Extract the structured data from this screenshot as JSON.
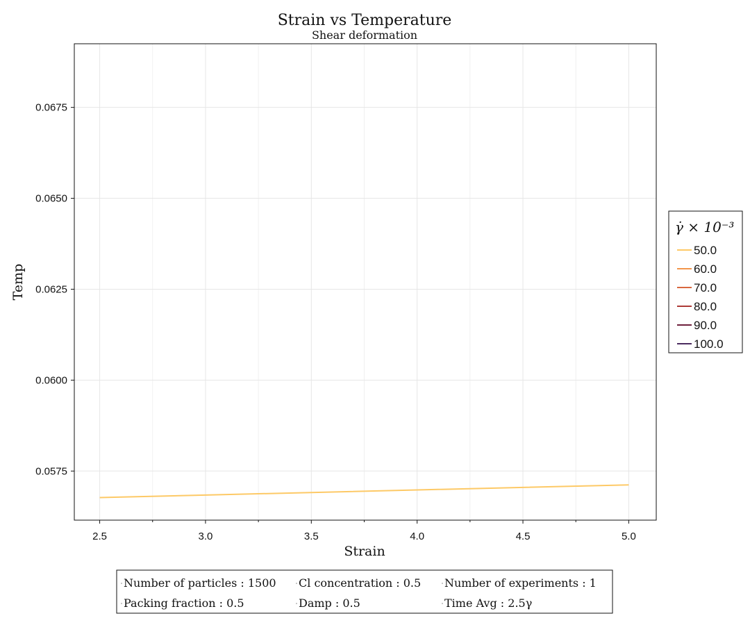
{
  "chart_data": {
    "type": "line",
    "title": "Strain vs Temperature",
    "subtitle": "Shear deformation",
    "xlabel": "Strain",
    "ylabel": "Temp",
    "xlim": [
      2.38,
      5.13
    ],
    "ylim": [
      0.05615,
      0.06925
    ],
    "xticks": [
      "2.5",
      "3.0",
      "3.5",
      "4.0",
      "4.5",
      "5.0"
    ],
    "xticks_values": [
      2.5,
      3.0,
      3.5,
      4.0,
      4.5,
      5.0
    ],
    "yticks": [
      "0.0575",
      "0.0600",
      "0.0625",
      "0.0650",
      "0.0675"
    ],
    "yticks_values": [
      0.0575,
      0.06,
      0.0625,
      0.065,
      0.0675
    ],
    "grid": true,
    "legend_position": "right",
    "legend_title": "γ̇ × 10⁻³",
    "series": [
      {
        "name": "50.0",
        "color": "#fdc966",
        "x": [
          2.5,
          3.0,
          3.5,
          4.0,
          4.5,
          5.0
        ],
        "y": [
          0.05677,
          0.05684,
          0.05691,
          0.05698,
          0.05705,
          0.05712
        ]
      },
      {
        "name": "60.0",
        "color": "#f3954a",
        "x": [],
        "y": []
      },
      {
        "name": "70.0",
        "color": "#d8673f",
        "x": [],
        "y": []
      },
      {
        "name": "80.0",
        "color": "#ad3a36",
        "x": [],
        "y": []
      },
      {
        "name": "90.0",
        "color": "#6e1f3c",
        "x": [],
        "y": []
      },
      {
        "name": "100.0",
        "color": "#4a2b5f",
        "x": [],
        "y": []
      }
    ]
  },
  "info_box": {
    "items": [
      "Number of particles : 1500",
      "Cl concentration : 0.5",
      "Number of experiments : 1",
      "Packing fraction : 0.5",
      "Damp : 0.5",
      "Time Avg : 2.5γ"
    ]
  }
}
